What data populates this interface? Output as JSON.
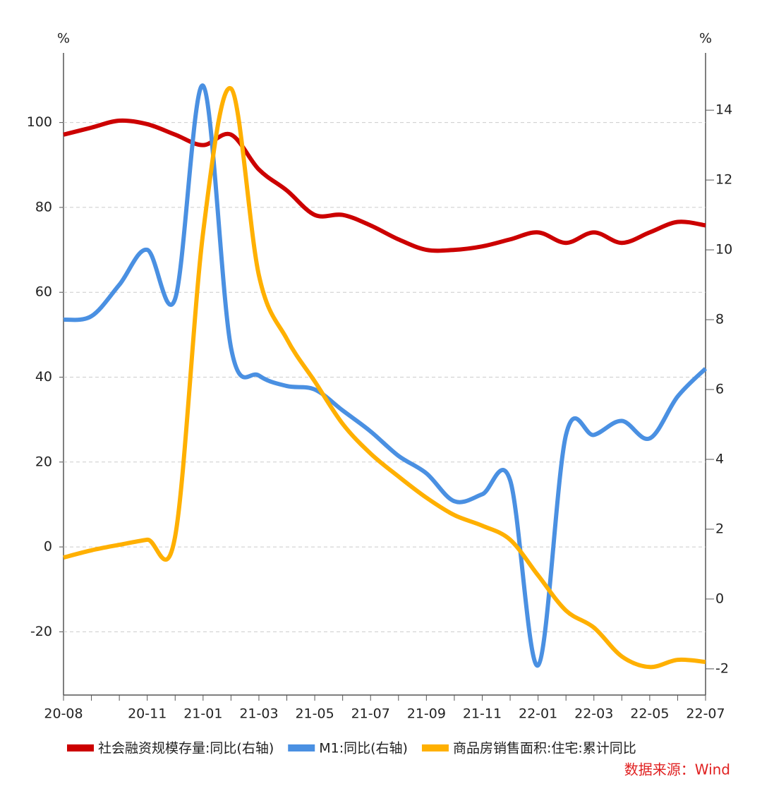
{
  "chart_data": {
    "type": "line",
    "y_unit": "%",
    "y2_unit": "%",
    "source": "数据来源：Wind",
    "categories": [
      "20-08",
      null,
      null,
      "20-11",
      null,
      "21-01",
      null,
      "21-03",
      null,
      "21-05",
      null,
      "21-07",
      null,
      "21-09",
      null,
      "21-11",
      null,
      "22-01",
      null,
      "22-03",
      null,
      "22-05",
      null,
      "22-07"
    ],
    "series": [
      {
        "name": "社会融资规模存量:同比(右轴)",
        "color": "#cc0000",
        "axis": "y2",
        "values": [
          13.3,
          13.5,
          13.7,
          13.6,
          13.3,
          13.0,
          13.3,
          12.3,
          11.7,
          11.0,
          11.0,
          10.7,
          10.3,
          10.0,
          10.0,
          10.1,
          10.3,
          10.5,
          10.2,
          10.5,
          10.2,
          10.5,
          10.8,
          10.7
        ]
      },
      {
        "name": "M1:同比(右轴)",
        "color": "#4a90e2",
        "axis": "y2",
        "values": [
          8.0,
          8.1,
          9.0,
          10.0,
          8.6,
          14.7,
          7.2,
          6.4,
          6.1,
          6.0,
          5.4,
          4.8,
          4.1,
          3.6,
          2.8,
          3.0,
          3.4,
          -1.9,
          4.7,
          4.7,
          5.1,
          4.6,
          5.8,
          6.6
        ]
      },
      {
        "name": "商品房销售面积:住宅:累计同比",
        "color": "#ffb000",
        "values": [
          -2.5,
          -0.8,
          0.5,
          1.7,
          2.5,
          74,
          108,
          64,
          49,
          39,
          29,
          22,
          16.6,
          11.6,
          7.5,
          5,
          1.7,
          -6.7,
          -15,
          -19,
          -25.8,
          -28.3,
          -26.6,
          -27.1
        ]
      }
    ],
    "ylim": [
      -34.9,
      116.4
    ],
    "yticks": [
      -20,
      0,
      20,
      40,
      60,
      80,
      100
    ],
    "y2lim": [
      -2.75,
      15.64
    ],
    "y2ticks": [
      -2,
      0,
      2,
      4,
      6,
      8,
      10,
      12,
      14
    ],
    "grid": true
  }
}
